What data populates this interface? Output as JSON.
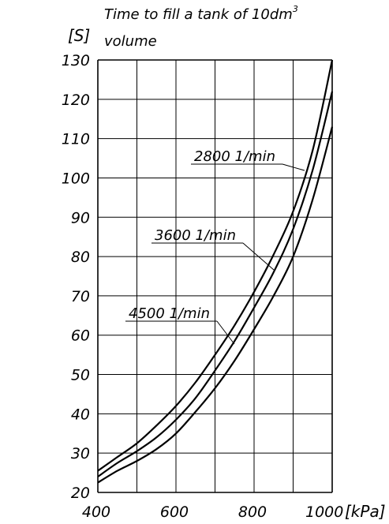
{
  "chart_data": {
    "type": "line",
    "title_line1": "Time to fill a tank of 10dm",
    "title_superscript": "3",
    "title_line2": "volume",
    "ylabel": "[S]",
    "xlabel": "[kPa]",
    "xlim": [
      400,
      1000
    ],
    "ylim": [
      20,
      130
    ],
    "xticks": [
      "400",
      "600",
      "800",
      "1000"
    ],
    "yticks": [
      "20",
      "30",
      "40",
      "50",
      "60",
      "70",
      "80",
      "90",
      "100",
      "110",
      "120",
      "130"
    ],
    "grid": true,
    "series": [
      {
        "name": "2800 1/min",
        "x": [
          400,
          450,
          500,
          550,
          600,
          650,
          700,
          750,
          800,
          850,
          900,
          950,
          1000
        ],
        "y": [
          25.5,
          29,
          32.5,
          37,
          42,
          48,
          55,
          62.5,
          71,
          80.5,
          91.5,
          107,
          130
        ]
      },
      {
        "name": "3600 1/min",
        "x": [
          400,
          450,
          500,
          550,
          600,
          650,
          700,
          750,
          800,
          850,
          900,
          950,
          1000
        ],
        "y": [
          24,
          27.5,
          30.5,
          34,
          38.5,
          44,
          51,
          58.5,
          67,
          76,
          87,
          102,
          122
        ]
      },
      {
        "name": "4500 1/min",
        "x": [
          400,
          450,
          500,
          550,
          600,
          650,
          700,
          750,
          800,
          850,
          900,
          950,
          1000
        ],
        "y": [
          22.5,
          25.5,
          28,
          31,
          35,
          40.5,
          46.5,
          53.5,
          61.5,
          70,
          80,
          94.5,
          113
        ]
      }
    ]
  }
}
